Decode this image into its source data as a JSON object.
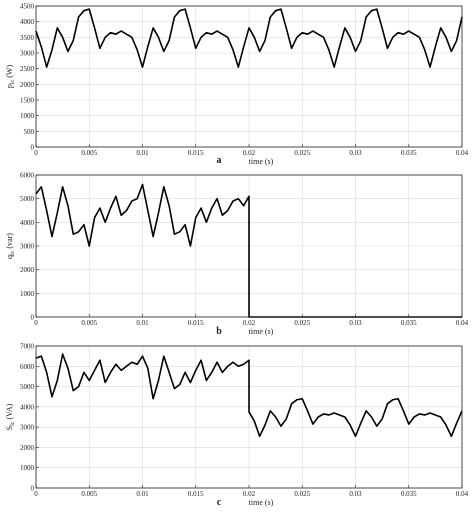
{
  "colors": {
    "trace": "#000000",
    "frame": "#222222",
    "grid": "#d9d9d9",
    "background": "#ffffff"
  },
  "chart_data": [
    {
      "type": "line",
      "panel_label": "a",
      "xlabel": "time (s)",
      "ylabel_main": "p",
      "ylabel_sub": "lc",
      "ylabel_unit": " (W)",
      "xlim": [
        0,
        0.04
      ],
      "ylim": [
        0,
        4500
      ],
      "grid": true,
      "xticks": [
        "0",
        "0.005",
        "0.01",
        "0.015",
        "0.02",
        "0.025",
        "0.03",
        "0.035",
        "0.04"
      ],
      "yticks": [
        "0",
        "500",
        "1000",
        "1500",
        "2000",
        "2500",
        "3000",
        "3500",
        "4000",
        "4500"
      ],
      "series": [
        {
          "x": [
            0,
            0.0005,
            0.001,
            0.0015,
            0.002,
            0.0025,
            0.003,
            0.0035,
            0.004,
            0.0045,
            0.005,
            0.0055,
            0.006,
            0.0065,
            0.007,
            0.0075,
            0.008,
            0.0085,
            0.009,
            0.0095,
            0.01,
            0.0105,
            0.011,
            0.0115,
            0.012,
            0.0125,
            0.013,
            0.0135,
            0.014,
            0.0145,
            0.015,
            0.0155,
            0.016,
            0.0165,
            0.017,
            0.0175,
            0.018,
            0.0185,
            0.019,
            0.0195,
            0.02,
            0.0205,
            0.021,
            0.0215,
            0.022,
            0.0225,
            0.023,
            0.0235,
            0.024,
            0.0245,
            0.025,
            0.0255,
            0.026,
            0.0265,
            0.027,
            0.0275,
            0.028,
            0.0285,
            0.029,
            0.0295,
            0.03,
            0.0305,
            0.031,
            0.0315,
            0.032,
            0.0325,
            0.033,
            0.0335,
            0.034,
            0.0345,
            0.035,
            0.0355,
            0.036,
            0.0365,
            0.037,
            0.0375,
            0.038,
            0.0385,
            0.039,
            0.0395,
            0.04
          ],
          "y": [
            3700,
            3200,
            2550,
            3100,
            3800,
            3500,
            3050,
            3400,
            4150,
            4350,
            4400,
            3800,
            3150,
            3500,
            3650,
            3600,
            3700,
            3600,
            3500,
            3100,
            2550,
            3200,
            3800,
            3500,
            3050,
            3400,
            4150,
            4350,
            4400,
            3800,
            3150,
            3500,
            3650,
            3600,
            3700,
            3600,
            3500,
            3100,
            2550,
            3200,
            3800,
            3500,
            3050,
            3400,
            4150,
            4350,
            4400,
            3800,
            3150,
            3500,
            3650,
            3600,
            3700,
            3600,
            3500,
            3100,
            2550,
            3200,
            3800,
            3500,
            3050,
            3400,
            4150,
            4350,
            4400,
            3800,
            3150,
            3500,
            3650,
            3600,
            3700,
            3600,
            3500,
            3100,
            2550,
            3200,
            3800,
            3500,
            3050,
            3400,
            4150
          ]
        }
      ]
    },
    {
      "type": "line",
      "panel_label": "b",
      "xlabel": "time (s)",
      "ylabel_main": "q",
      "ylabel_sub": "lc",
      "ylabel_unit": " (var)",
      "xlim": [
        0,
        0.04
      ],
      "ylim": [
        0,
        6000
      ],
      "grid": true,
      "xticks": [
        "0",
        "0.005",
        "0.01",
        "0.015",
        "0.02",
        "0.025",
        "0.03",
        "0.035",
        "0.04"
      ],
      "yticks": [
        "0",
        "1000",
        "2000",
        "3000",
        "4000",
        "5000",
        "6000"
      ],
      "series": [
        {
          "x": [
            0,
            0.0005,
            0.001,
            0.0015,
            0.002,
            0.0025,
            0.003,
            0.0035,
            0.004,
            0.0045,
            0.005,
            0.0055,
            0.006,
            0.0065,
            0.007,
            0.0075,
            0.008,
            0.0085,
            0.009,
            0.0095,
            0.01,
            0.0105,
            0.011,
            0.0115,
            0.012,
            0.0125,
            0.013,
            0.0135,
            0.014,
            0.0145,
            0.015,
            0.0155,
            0.016,
            0.0165,
            0.017,
            0.0175,
            0.018,
            0.0185,
            0.019,
            0.0195,
            0.02,
            0.02,
            0.025,
            0.03,
            0.035,
            0.04
          ],
          "y": [
            5200,
            5500,
            4500,
            3400,
            4400,
            5500,
            4700,
            3500,
            3600,
            3900,
            3000,
            4200,
            4600,
            4000,
            4600,
            5100,
            4300,
            4500,
            4900,
            5000,
            5600,
            4500,
            3400,
            4400,
            5500,
            4700,
            3500,
            3600,
            3900,
            3000,
            4200,
            4600,
            4000,
            4600,
            5000,
            4300,
            4500,
            4900,
            5000,
            4700,
            5100,
            0,
            0,
            0,
            0,
            0
          ]
        }
      ]
    },
    {
      "type": "line",
      "panel_label": "c",
      "xlabel": "time (s)",
      "ylabel_main": "S",
      "ylabel_sub": "lc",
      "ylabel_unit": " (VA)",
      "xlim": [
        0,
        0.04
      ],
      "ylim": [
        0,
        7000
      ],
      "grid": true,
      "xticks": [
        "0",
        "0.005",
        "0.01",
        "0.015",
        "0.02",
        "0.025",
        "0.03",
        "0.035",
        "0.04"
      ],
      "yticks": [
        "0",
        "1000",
        "2000",
        "3000",
        "4000",
        "5000",
        "6000",
        "7000"
      ],
      "series": [
        {
          "x": [
            0,
            0.0005,
            0.001,
            0.0015,
            0.002,
            0.0025,
            0.003,
            0.0035,
            0.004,
            0.0045,
            0.005,
            0.0055,
            0.006,
            0.0065,
            0.007,
            0.0075,
            0.008,
            0.0085,
            0.009,
            0.0095,
            0.01,
            0.0105,
            0.011,
            0.0115,
            0.012,
            0.0125,
            0.013,
            0.0135,
            0.014,
            0.0145,
            0.015,
            0.0155,
            0.016,
            0.0165,
            0.017,
            0.0175,
            0.018,
            0.0185,
            0.019,
            0.0195,
            0.02,
            0.02,
            0.0205,
            0.021,
            0.0215,
            0.022,
            0.0225,
            0.023,
            0.0235,
            0.024,
            0.0245,
            0.025,
            0.0255,
            0.026,
            0.0265,
            0.027,
            0.0275,
            0.028,
            0.0285,
            0.029,
            0.0295,
            0.03,
            0.0305,
            0.031,
            0.0315,
            0.032,
            0.0325,
            0.033,
            0.0335,
            0.034,
            0.0345,
            0.035,
            0.0355,
            0.036,
            0.0365,
            0.037,
            0.0375,
            0.038,
            0.0385,
            0.039,
            0.0395,
            0.04
          ],
          "y": [
            6400,
            6500,
            5700,
            4500,
            5300,
            6600,
            5900,
            4800,
            5000,
            5700,
            5300,
            5800,
            6300,
            5200,
            5700,
            6100,
            5800,
            6000,
            6200,
            6100,
            6500,
            5900,
            4400,
            5300,
            6500,
            5700,
            4900,
            5100,
            5700,
            5200,
            5800,
            6300,
            5300,
            5700,
            6200,
            5700,
            6000,
            6200,
            6000,
            6100,
            6300,
            3750,
            3300,
            2550,
            3100,
            3800,
            3500,
            3050,
            3400,
            4150,
            4350,
            4400,
            3800,
            3150,
            3500,
            3650,
            3600,
            3700,
            3600,
            3500,
            3100,
            2550,
            3200,
            3800,
            3500,
            3050,
            3400,
            4150,
            4350,
            4400,
            3800,
            3150,
            3500,
            3650,
            3600,
            3700,
            3600,
            3500,
            3100,
            2550,
            3200,
            3800
          ]
        }
      ]
    }
  ]
}
